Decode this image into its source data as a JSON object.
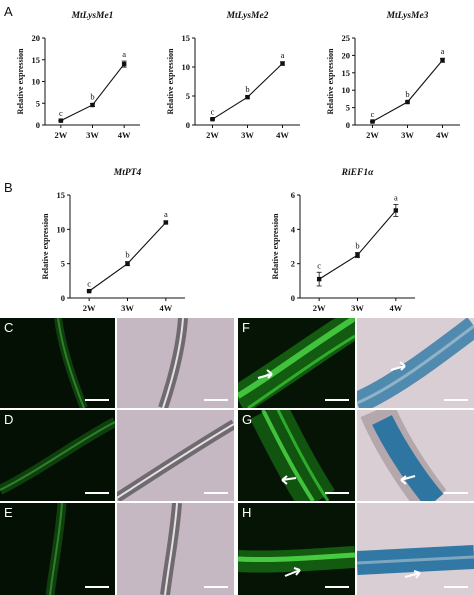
{
  "panel_labels": {
    "A": "A",
    "B": "B",
    "C": "C",
    "D": "D",
    "E": "E",
    "F": "F",
    "G": "G",
    "H": "H"
  },
  "colors": {
    "gfp_green": "#2fc02a",
    "gus_blue": "#1f6fa0",
    "brightfield": "#c9bcc6"
  },
  "chart_data": [
    {
      "type": "line",
      "title": "MtLysMe1",
      "x": [
        "2W",
        "3W",
        "4W"
      ],
      "y": [
        1,
        4.6,
        14
      ],
      "err": [
        0.1,
        0.3,
        0.7
      ],
      "sig": [
        "c",
        "b",
        "a"
      ],
      "ylabel": "Relative expression",
      "ylim": [
        0,
        20
      ],
      "yticks": [
        0,
        5,
        10,
        15,
        20
      ],
      "grid": false
    },
    {
      "type": "line",
      "title": "MtLysMe2",
      "x": [
        "2W",
        "3W",
        "4W"
      ],
      "y": [
        1,
        4.8,
        10.6
      ],
      "err": [
        0.1,
        0.2,
        0.3
      ],
      "sig": [
        "c",
        "b",
        "a"
      ],
      "ylabel": "Relative expression",
      "ylim": [
        0,
        15
      ],
      "yticks": [
        0,
        5,
        10,
        15
      ],
      "grid": false
    },
    {
      "type": "line",
      "title": "MtLysMe3",
      "x": [
        "2W",
        "3W",
        "4W"
      ],
      "y": [
        1,
        6.6,
        18.6
      ],
      "err": [
        0.1,
        0.3,
        0.6
      ],
      "sig": [
        "c",
        "b",
        "a"
      ],
      "ylabel": "Relative expression",
      "ylim": [
        0,
        25
      ],
      "yticks": [
        0,
        5,
        10,
        15,
        20,
        25
      ],
      "grid": false
    },
    {
      "type": "line",
      "title": "MtPT4",
      "x": [
        "2W",
        "3W",
        "4W"
      ],
      "y": [
        1,
        5,
        11
      ],
      "err": [
        0.1,
        0.3,
        0.2
      ],
      "sig": [
        "c",
        "b",
        "a"
      ],
      "ylabel": "Relative expression",
      "ylim": [
        0,
        15
      ],
      "yticks": [
        0,
        5,
        10,
        15
      ],
      "grid": false
    },
    {
      "type": "line",
      "title": "RiEF1α",
      "x": [
        "2W",
        "3W",
        "4W"
      ],
      "y": [
        1.1,
        2.5,
        5.1
      ],
      "err": [
        0.4,
        0.15,
        0.35
      ],
      "sig": [
        "c",
        "b",
        "a"
      ],
      "ylabel": "Relative expression",
      "ylim": [
        0,
        6
      ],
      "yticks": [
        0,
        2,
        4,
        6
      ],
      "grid": false
    }
  ]
}
